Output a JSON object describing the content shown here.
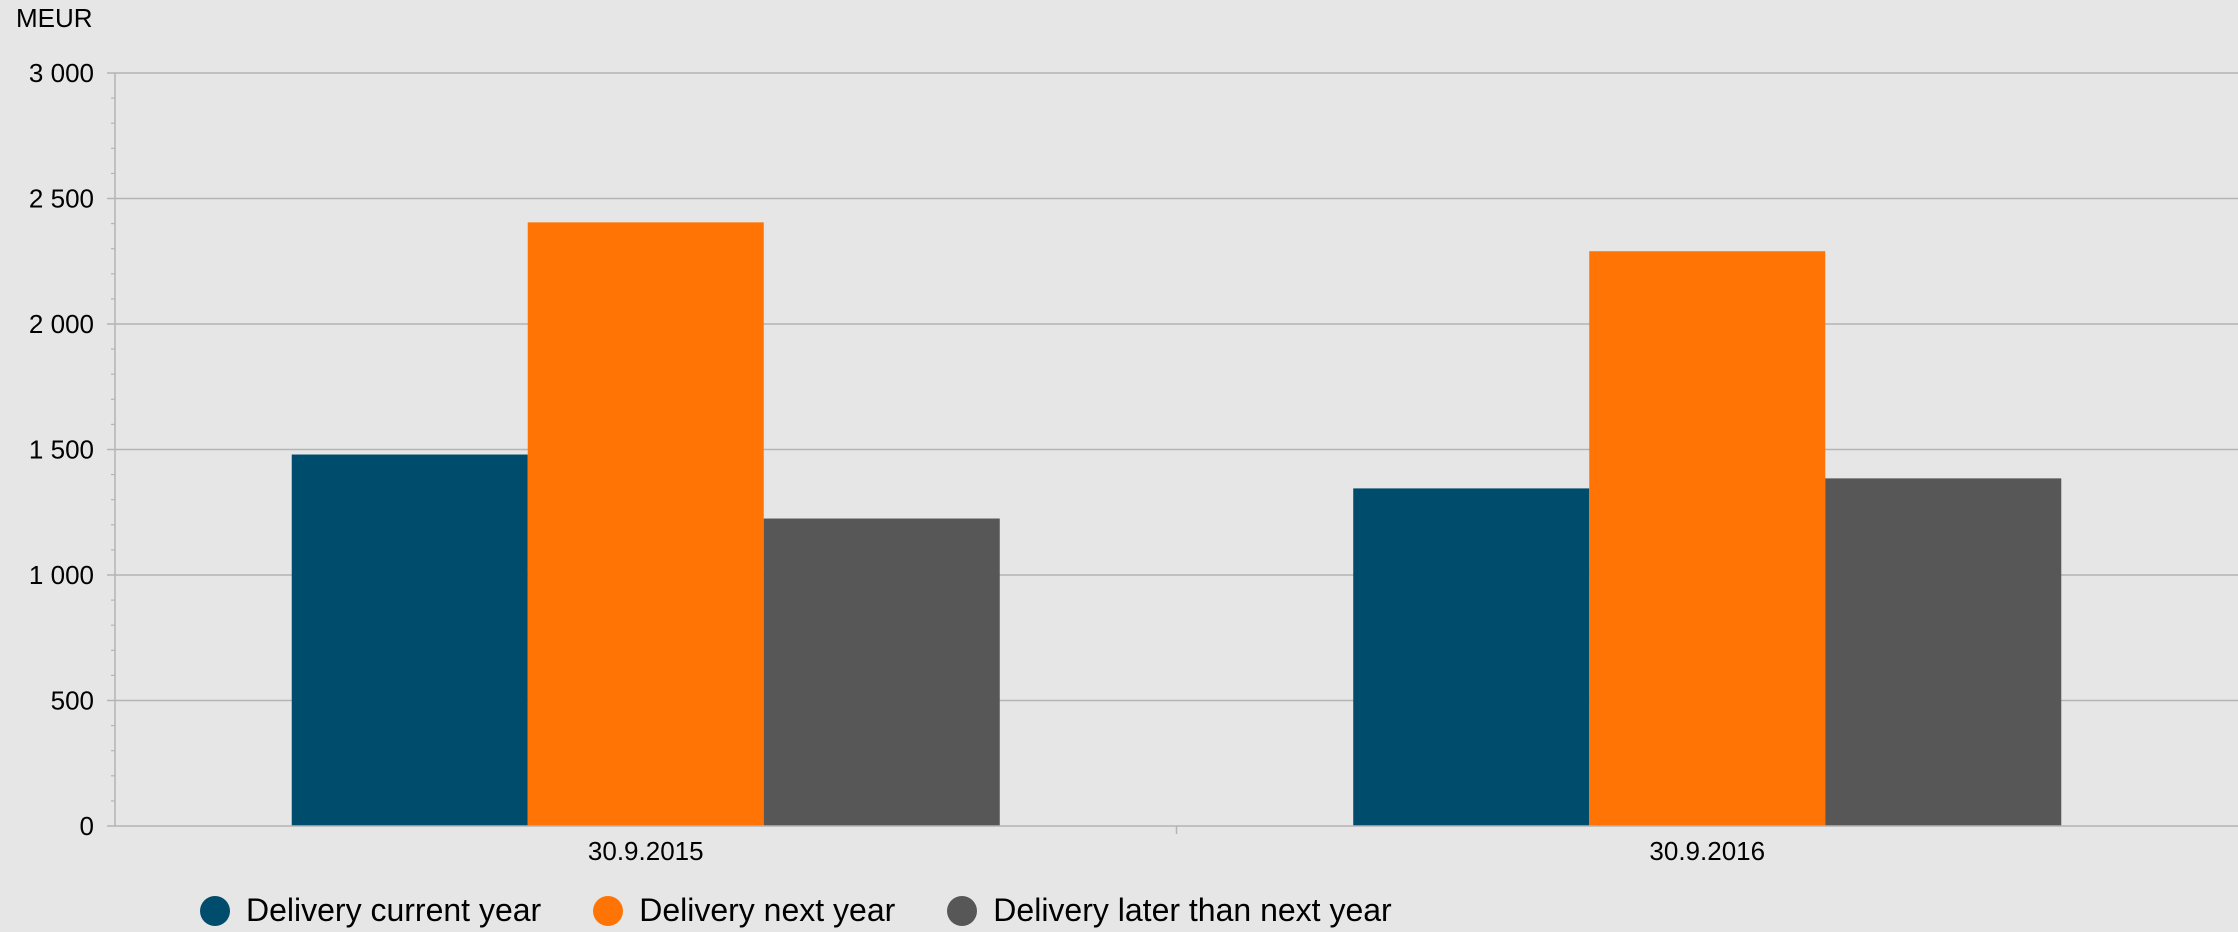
{
  "chart_data": {
    "type": "bar",
    "title": "",
    "ylabel": "MEUR",
    "xlabel": "",
    "ylim": [
      0,
      3000
    ],
    "yticks": [
      0,
      500,
      1000,
      1500,
      2000,
      2500,
      3000
    ],
    "ytick_labels": [
      "0",
      "500",
      "1 000",
      "1 500",
      "2 000",
      "2 500",
      "3 000"
    ],
    "grid": true,
    "legend_position": "bottom-left",
    "categories": [
      "30.9.2015",
      "30.9.2016"
    ],
    "series": [
      {
        "name": "Delivery current year",
        "color": "#004c6c",
        "values": [
          1480,
          1345
        ]
      },
      {
        "name": "Delivery next year",
        "color": "#ff7405",
        "values": [
          2405,
          2290
        ]
      },
      {
        "name": "Delivery later than next year",
        "color": "#575757",
        "values": [
          1225,
          1385
        ]
      }
    ]
  }
}
